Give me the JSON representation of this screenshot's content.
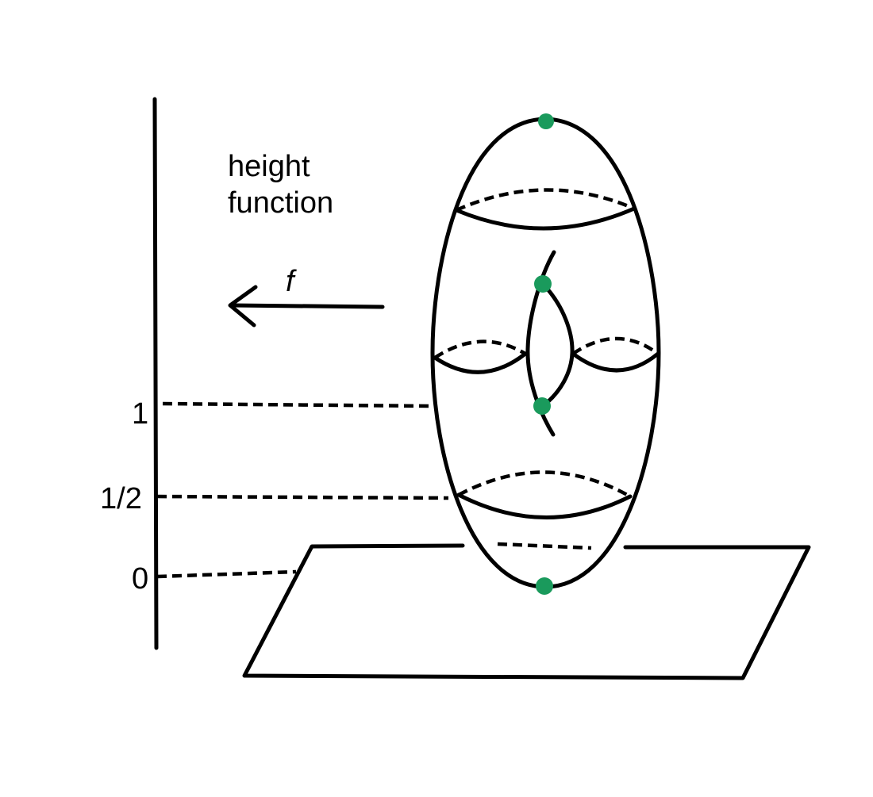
{
  "labels": {
    "title_line1": "height",
    "title_line2": "function",
    "map_name": "f",
    "tick_1": "1",
    "tick_half": "1/2",
    "tick_0": "0"
  },
  "colors": {
    "stroke": "#000000",
    "critical_point": "#1a9a5c",
    "background": "#ffffff"
  },
  "critical_points": [
    "maximum",
    "saddle-upper",
    "saddle-lower",
    "minimum"
  ]
}
